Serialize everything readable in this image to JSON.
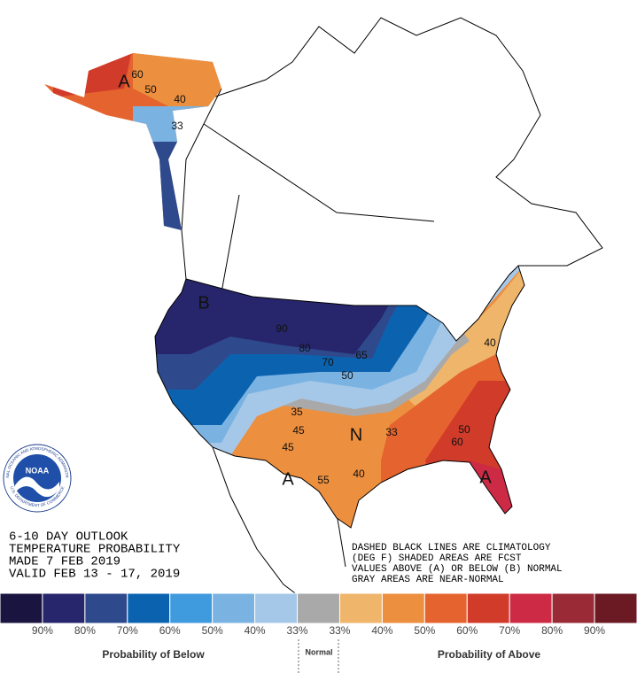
{
  "map": {
    "map_labels": [
      "A",
      "60",
      "50",
      "40",
      "33",
      "B",
      "90",
      "80",
      "70",
      "65",
      "50",
      "N",
      "33",
      "35",
      "45",
      "45",
      "40",
      "55",
      "A",
      "40",
      "50",
      "60",
      "A"
    ],
    "title_lines": [
      "6-10 DAY OUTLOOK",
      "TEMPERATURE PROBABILITY",
      "MADE  7 FEB 2019",
      "VALID  FEB 13 - 17, 2019"
    ],
    "notes": [
      "DASHED BLACK LINES ARE CLIMATOLOGY",
      "(DEG F) SHADED AREAS ARE FCST",
      "VALUES ABOVE (A) OR BELOW (B) NORMAL",
      "GRAY AREAS ARE NEAR-NORMAL"
    ],
    "logo": {
      "name": "NOAA",
      "ring_top": "NATIONAL OCEANIC AND ATMOSPHERIC ADMINISTRATION",
      "ring_bottom": "U.S. DEPARTMENT OF COMMERCE"
    },
    "legend": {
      "colors": [
        "#1a1440",
        "#27256b",
        "#2e4a8c",
        "#0b63b0",
        "#3f9ade",
        "#7ab3e2",
        "#a6c8e8",
        "#a9a9a9",
        "#efb56b",
        "#ec8f3e",
        "#e4632e",
        "#d13b2a",
        "#cd2a45",
        "#992a36",
        "#6b1a24"
      ],
      "labels": [
        "90%",
        "80%",
        "70%",
        "60%",
        "50%",
        "40%",
        "33%",
        "33%",
        "40%",
        "50%",
        "60%",
        "70%",
        "80%",
        "90%"
      ],
      "below": "Probability of Below",
      "normal": "Normal",
      "above": "Probability of Above"
    }
  }
}
